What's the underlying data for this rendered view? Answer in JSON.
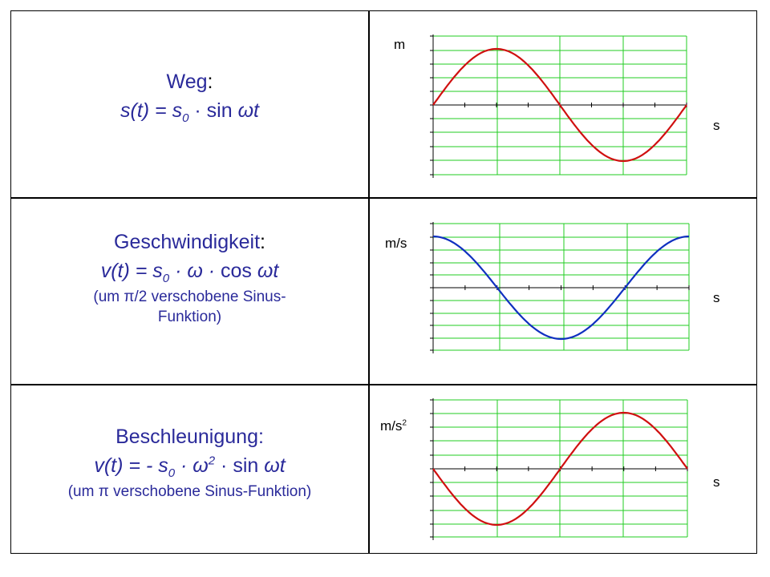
{
  "rows": [
    {
      "title": "Weg",
      "title_suffix": ":",
      "formula": {
        "lhs": "s(t) = s",
        "sub": "0",
        "dot": " · ",
        "fn": "sin ",
        "arg": "ωt"
      },
      "y_unit": "m",
      "x_unit": "s"
    },
    {
      "title": "Geschwindigkeit",
      "title_suffix": ":",
      "formula": {
        "lhs": "v(t) = s",
        "sub": "0",
        "mid": " · ω · ",
        "fn": "cos ",
        "arg": "ωt"
      },
      "note": [
        "(um π/2 verschobene Sinus-",
        "Funktion)"
      ],
      "y_unit": "m/s",
      "x_unit": "s"
    },
    {
      "title": "Beschleunigung:",
      "formula": {
        "lhs": "v(t) = - s",
        "sub": "0",
        "mid": " · ω",
        "sup": "2",
        "dot": " · ",
        "fn": "sin ",
        "arg": "ωt"
      },
      "note": [
        "(um π verschobene Sinus-Funktion)"
      ],
      "y_unit": "m/s",
      "y_unit_sup": "2",
      "x_unit": "s"
    }
  ],
  "chart_data": [
    {
      "type": "line",
      "function": "sin",
      "x": [
        0,
        90,
        180,
        270,
        360
      ],
      "y": [
        0,
        1,
        0,
        -1,
        0
      ],
      "color": "#d01010",
      "grid": true
    },
    {
      "type": "line",
      "function": "cos",
      "x": [
        0,
        90,
        180,
        270,
        360
      ],
      "y": [
        1,
        0,
        -1,
        0,
        1
      ],
      "color": "#1030c0",
      "grid": true
    },
    {
      "type": "line",
      "function": "-sin",
      "x": [
        0,
        90,
        180,
        270,
        360
      ],
      "y": [
        0,
        -1,
        0,
        1,
        0
      ],
      "color": "#d01010",
      "grid": true
    }
  ]
}
